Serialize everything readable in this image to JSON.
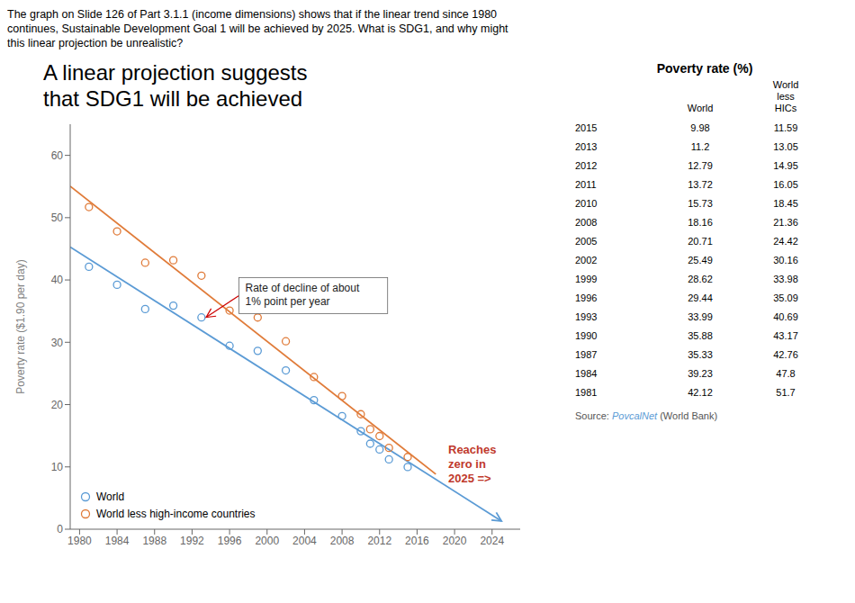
{
  "chart_data": {
    "type": "scatter",
    "title": "A linear projection suggests\nthat SDG1 will be achieved",
    "question": "The graph on Slide 126 of Part 3.1.1 (income dimensions) shows that if the linear trend since 1980\ncontinues, Sustainable Development Goal 1 will be achieved by 2025. What is SDG1, and why might\nthis linear projection be unrealistic?",
    "ylabel": "Poverty rate ($1.90 per day)",
    "xlim": [
      1979,
      2027
    ],
    "xticks": [
      1980,
      1984,
      1988,
      1992,
      1996,
      2000,
      2004,
      2008,
      2012,
      2016,
      2020,
      2024
    ],
    "ylim": [
      0,
      65
    ],
    "yticks": [
      0,
      10,
      20,
      30,
      40,
      50,
      60
    ],
    "grid": false,
    "legend": "lower left",
    "series": [
      {
        "name": "World",
        "color": "#5b9bd5",
        "x": [
          1981,
          1984,
          1987,
          1990,
          1993,
          1996,
          1999,
          2002,
          2005,
          2008,
          2010,
          2011,
          2012,
          2013,
          2015
        ],
        "values": [
          42.12,
          39.23,
          35.33,
          35.88,
          33.99,
          29.44,
          28.62,
          25.49,
          20.71,
          18.16,
          15.73,
          13.72,
          12.79,
          11.2,
          9.98
        ],
        "trend": {
          "x": [
            1979,
            2025
          ],
          "values": [
            45.2865,
            1.306
          ],
          "arrow": true
        }
      },
      {
        "name": "World less high-income countries",
        "color": "#e07b39",
        "x": [
          1981,
          1984,
          1987,
          1990,
          1993,
          1996,
          1999,
          2002,
          2005,
          2008,
          2010,
          2011,
          2012,
          2013,
          2015
        ],
        "values": [
          51.7,
          47.8,
          42.76,
          43.17,
          40.69,
          35.09,
          33.98,
          30.16,
          24.42,
          21.36,
          18.45,
          16.05,
          14.95,
          13.05,
          11.59
        ],
        "trend": {
          "x": [
            1979,
            2018
          ],
          "values": [
            55.0379,
            8.8274
          ],
          "arrow": false
        }
      }
    ],
    "annotations": [
      {
        "text": "Rate of decline of about\n1% point per year",
        "x": 1997,
        "y": 37.5,
        "arrow_x": 1993.5,
        "arrow_y": 34.0,
        "arrow_color": "#cc0000"
      },
      {
        "text": "Reaches\nzero in\n2025 =>",
        "color": "#c0392b"
      }
    ],
    "table": {
      "title": "Poverty rate (%)",
      "columns": [
        "World",
        "World\nless\nHICs"
      ],
      "rows": [
        [
          "2015",
          "9.98",
          "11.59"
        ],
        [
          "2013",
          "11.2",
          "13.05"
        ],
        [
          "2012",
          "12.79",
          "14.95"
        ],
        [
          "2011",
          "13.72",
          "16.05"
        ],
        [
          "2010",
          "15.73",
          "18.45"
        ],
        [
          "2008",
          "18.16",
          "21.36"
        ],
        [
          "2005",
          "20.71",
          "24.42"
        ],
        [
          "2002",
          "25.49",
          "30.16"
        ],
        [
          "1999",
          "28.62",
          "33.98"
        ],
        [
          "1996",
          "29.44",
          "35.09"
        ],
        [
          "1993",
          "33.99",
          "40.69"
        ],
        [
          "1990",
          "35.88",
          "43.17"
        ],
        [
          "1987",
          "35.33",
          "42.76"
        ],
        [
          "1984",
          "39.23",
          "47.8"
        ],
        [
          "1981",
          "42.12",
          "51.7"
        ]
      ]
    },
    "source": {
      "text": "Source: ",
      "link": "PovcalNet",
      "rest": " (World Bank)",
      "color": "#555555",
      "link_color": "#5b9bd5"
    }
  }
}
